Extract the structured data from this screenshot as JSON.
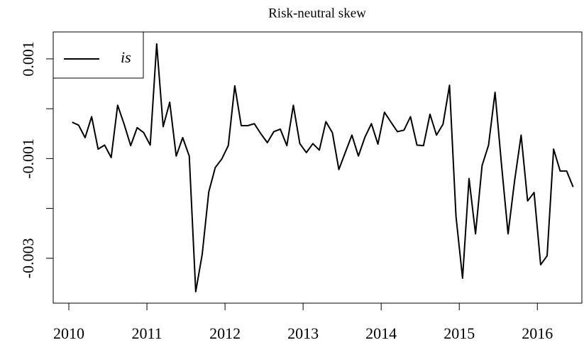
{
  "chart_data": {
    "type": "line",
    "title": "Risk-neutral skew",
    "x": [
      2010.042,
      2010.125,
      2010.208,
      2010.292,
      2010.375,
      2010.458,
      2010.542,
      2010.625,
      2010.708,
      2010.792,
      2010.875,
      2010.958,
      2011.042,
      2011.125,
      2011.208,
      2011.292,
      2011.375,
      2011.458,
      2011.542,
      2011.625,
      2011.708,
      2011.792,
      2011.875,
      2011.958,
      2012.042,
      2012.125,
      2012.208,
      2012.292,
      2012.375,
      2012.458,
      2012.542,
      2012.625,
      2012.708,
      2012.792,
      2012.875,
      2012.958,
      2013.042,
      2013.125,
      2013.208,
      2013.292,
      2013.375,
      2013.458,
      2013.542,
      2013.625,
      2013.708,
      2013.792,
      2013.875,
      2013.958,
      2014.042,
      2014.125,
      2014.208,
      2014.292,
      2014.375,
      2014.458,
      2014.542,
      2014.625,
      2014.708,
      2014.792,
      2014.875,
      2014.958,
      2015.042,
      2015.125,
      2015.208,
      2015.292,
      2015.375,
      2015.458,
      2015.542,
      2015.625,
      2015.708,
      2015.792,
      2015.875,
      2015.958,
      2016.042,
      2016.125,
      2016.208,
      2016.292,
      2016.375,
      2016.458
    ],
    "series": [
      {
        "name": "is",
        "color": "#000000",
        "values": [
          -0.00027,
          -0.00033,
          -0.00058,
          -0.00016,
          -0.00081,
          -0.00073,
          -0.00098,
          7e-05,
          -0.00031,
          -0.00074,
          -0.00038,
          -0.00048,
          -0.00073,
          0.0013,
          -0.00036,
          0.00013,
          -0.00095,
          -0.00058,
          -0.00095,
          -0.00367,
          -0.00292,
          -0.00167,
          -0.00118,
          -0.00101,
          -0.00074,
          0.00046,
          -0.00034,
          -0.00034,
          -0.0003,
          -0.0005,
          -0.00068,
          -0.00046,
          -0.00041,
          -0.00074,
          7e-05,
          -0.0007,
          -0.00088,
          -0.0007,
          -0.00083,
          -0.00026,
          -0.00048,
          -0.00122,
          -0.00087,
          -0.00053,
          -0.00095,
          -0.00057,
          -0.0003,
          -0.00071,
          -7e-05,
          -0.00027,
          -0.00046,
          -0.00043,
          -0.00016,
          -0.00073,
          -0.00074,
          -0.00011,
          -0.00053,
          -0.00031,
          0.00047,
          -0.00216,
          -0.0034,
          -0.0014,
          -0.00251,
          -0.00114,
          -0.00073,
          0.00033,
          -0.00114,
          -0.00251,
          -0.00145,
          -0.00053,
          -0.00185,
          -0.00168,
          -0.00313,
          -0.00295,
          -0.00081,
          -0.00125,
          -0.00125,
          -0.00157
        ]
      }
    ],
    "xlim": [
      2009.8,
      2016.57
    ],
    "xticks": [
      2010,
      2011,
      2012,
      2013,
      2014,
      2015,
      2016
    ],
    "ylim": [
      -0.0039,
      0.00154
    ],
    "yticks": [
      0.001,
      -0.001,
      -0.003
    ],
    "yminor_ticks": [
      0,
      -0.002
    ],
    "legend": "topleft"
  }
}
